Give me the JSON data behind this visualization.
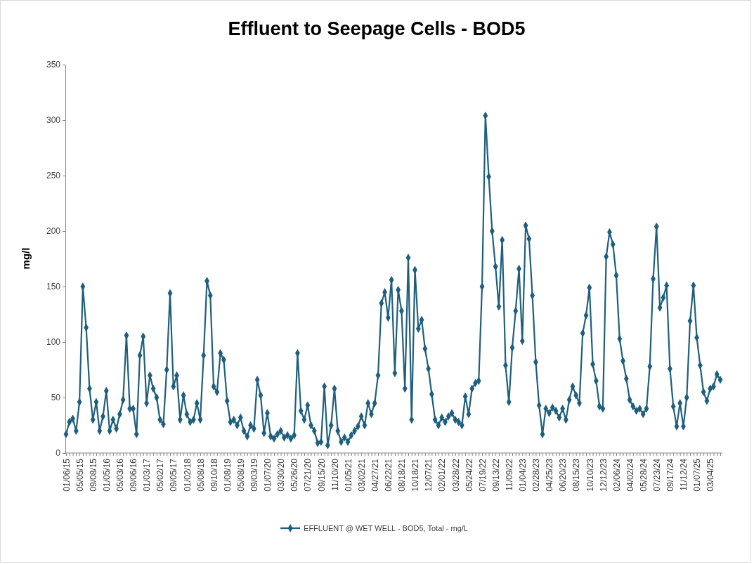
{
  "chart_data": {
    "type": "line",
    "title": "Effluent to Seepage Cells - BOD5",
    "ylabel": "mg/l",
    "categories": [
      "01/06/15",
      null,
      null,
      null,
      "05/05/15",
      null,
      null,
      null,
      "09/08/15",
      null,
      null,
      null,
      "01/05/16",
      null,
      null,
      null,
      "05/03/16",
      null,
      null,
      null,
      "09/06/16",
      null,
      null,
      null,
      "01/03/17",
      null,
      null,
      null,
      "05/02/17",
      null,
      null,
      null,
      "09/05/17",
      null,
      null,
      null,
      "01/02/18",
      null,
      null,
      null,
      "05/08/18",
      null,
      null,
      null,
      "09/10/18",
      null,
      null,
      null,
      "01/08/19",
      null,
      null,
      null,
      "05/08/19",
      null,
      null,
      null,
      "09/03/19",
      null,
      null,
      null,
      "01/07/20",
      null,
      null,
      null,
      "03/30/20",
      null,
      null,
      null,
      "05/26/20",
      null,
      null,
      null,
      "07/21/20",
      null,
      null,
      null,
      "09/15/20",
      null,
      null,
      null,
      "11/10/20",
      null,
      null,
      null,
      "01/05/21",
      null,
      null,
      null,
      "03/02/21",
      null,
      null,
      null,
      "04/27/21",
      null,
      null,
      null,
      "06/22/21",
      null,
      null,
      null,
      "08/18/21",
      null,
      null,
      null,
      "10/18/21",
      null,
      null,
      null,
      "12/07/21",
      null,
      null,
      null,
      "02/01/22",
      null,
      null,
      null,
      "03/28/22",
      null,
      null,
      null,
      "05/24/22",
      null,
      null,
      null,
      "07/19/22",
      null,
      null,
      null,
      "09/13/22",
      null,
      null,
      null,
      "11/09/22",
      null,
      null,
      null,
      "01/04/23",
      null,
      null,
      null,
      "02/28/23",
      null,
      null,
      null,
      "04/25/23",
      null,
      null,
      null,
      "06/20/23",
      null,
      null,
      null,
      "08/15/23",
      null,
      null,
      null,
      "10/10/23",
      null,
      null,
      null,
      "12/12/23",
      null,
      null,
      null,
      "02/06/24",
      null,
      null,
      null,
      "04/02/24",
      null,
      null,
      null,
      "05/28/24",
      null,
      null,
      null,
      "07/23/24",
      null,
      null,
      null,
      "09/17/24",
      null,
      null,
      null,
      "11/12/24",
      null,
      null,
      null,
      "01/07/25",
      null,
      null,
      null,
      "03/04/25",
      null,
      null,
      null
    ],
    "series": [
      {
        "name": "EFFLUENT @ WET WELL - BOD5, Total - mg/L",
        "color": "#1f5f7e",
        "values": [
          17,
          28,
          31,
          20,
          46,
          150,
          113,
          58,
          30,
          46,
          20,
          33,
          56,
          20,
          30,
          22,
          35,
          48,
          106,
          40,
          40,
          17,
          88,
          105,
          45,
          70,
          58,
          50,
          30,
          26,
          75,
          144,
          60,
          70,
          30,
          52,
          35,
          28,
          30,
          45,
          30,
          88,
          155,
          142,
          60,
          55,
          90,
          84,
          47,
          28,
          30,
          25,
          32,
          20,
          15,
          25,
          22,
          66,
          52,
          18,
          36,
          15,
          13,
          17,
          20,
          14,
          16,
          13,
          16,
          90,
          38,
          30,
          43,
          25,
          20,
          9,
          10,
          60,
          7,
          25,
          58,
          20,
          10,
          14,
          10,
          16,
          20,
          24,
          33,
          25,
          45,
          35,
          45,
          70,
          135,
          145,
          122,
          156,
          72,
          147,
          128,
          58,
          176,
          30,
          165,
          112,
          120,
          94,
          76,
          53,
          30,
          25,
          32,
          28,
          33,
          36,
          30,
          28,
          25,
          51,
          35,
          58,
          63,
          65,
          150,
          304,
          249,
          200,
          168,
          132,
          192,
          79,
          46,
          95,
          128,
          166,
          101,
          205,
          193,
          142,
          82,
          43,
          17,
          40,
          36,
          41,
          38,
          32,
          40,
          30,
          48,
          60,
          52,
          45,
          108,
          124,
          149,
          80,
          65,
          42,
          40,
          177,
          199,
          188,
          160,
          103,
          83,
          67,
          48,
          42,
          38,
          40,
          35,
          40,
          78,
          157,
          204,
          131,
          140,
          151,
          76,
          42,
          24,
          45,
          24,
          50,
          119,
          151,
          104,
          79,
          55,
          47,
          58,
          60,
          71,
          66
        ]
      }
    ],
    "ylim": [
      0,
      350
    ],
    "yticks": [
      0,
      50,
      100,
      150,
      200,
      250,
      300,
      350
    ],
    "grid": false,
    "legend": "bottom",
    "marker": "diamond",
    "line_style": "solid"
  }
}
